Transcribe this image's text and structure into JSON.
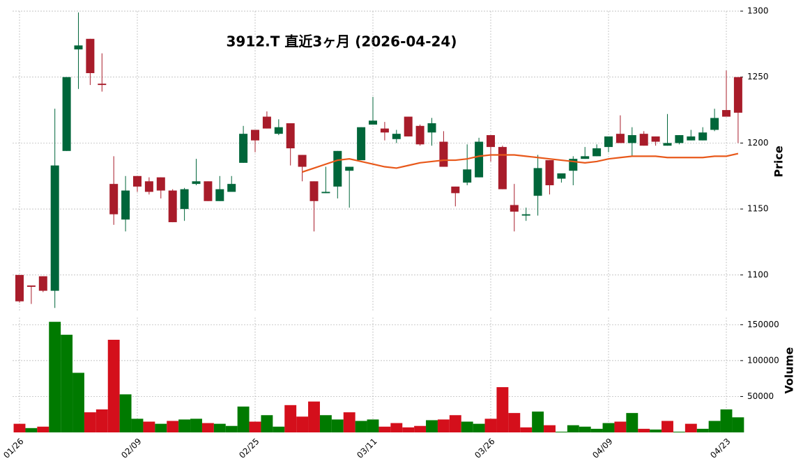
{
  "chart_data": [
    {
      "type": "candlestick",
      "title": "3912.T 直近3ヶ月 (2026-04-24)",
      "ylabel": "Price",
      "categories": [
        "01/26",
        null,
        null,
        null,
        null,
        null,
        null,
        null,
        null,
        null,
        "02/09",
        null,
        null,
        null,
        null,
        null,
        null,
        null,
        null,
        null,
        "02/25",
        null,
        null,
        null,
        null,
        null,
        null,
        null,
        null,
        null,
        "03/11",
        null,
        null,
        null,
        null,
        null,
        null,
        null,
        null,
        null,
        "03/26",
        null,
        null,
        null,
        null,
        null,
        null,
        null,
        null,
        null,
        "04/09",
        null,
        null,
        null,
        null,
        null,
        null,
        null,
        null,
        null,
        "04/23",
        null
      ],
      "open": [
        1100,
        1092,
        1099,
        1088,
        1194,
        1271,
        1279,
        1245,
        1169,
        1142,
        1175,
        1171,
        1174,
        1164,
        1150,
        1169,
        1171,
        1156,
        1163,
        1185,
        1210,
        1220,
        1207,
        1215,
        1191,
        1171,
        1162,
        1167,
        1179,
        1187,
        1214,
        1211,
        1203,
        1220,
        1213,
        1208,
        1201,
        1167,
        1170,
        1174,
        1206,
        1197,
        1153,
        1145,
        1160,
        1187,
        1173,
        1179,
        1188,
        1190,
        1197,
        1207,
        1200,
        1207,
        1205,
        1198,
        1200,
        1202,
        1202,
        1210,
        1225,
        1250
      ],
      "high": [
        1100,
        1092,
        1099,
        1226,
        1250,
        1299,
        1279,
        1268,
        1190,
        1175,
        1175,
        1174,
        1174,
        1165,
        1166,
        1188,
        1171,
        1175,
        1175,
        1213,
        1210,
        1224,
        1218,
        1215,
        1191,
        1171,
        1182,
        1194,
        1182,
        1212,
        1235,
        1216,
        1210,
        1220,
        1214,
        1219,
        1209,
        1167,
        1199,
        1204,
        1206,
        1198,
        1169,
        1151,
        1191,
        1187,
        1177,
        1190,
        1197,
        1199,
        1205,
        1221,
        1212,
        1209,
        1205,
        1222,
        1206,
        1210,
        1212,
        1226,
        1255,
        1250
      ],
      "low": [
        1079,
        1078,
        1087,
        1075,
        1194,
        1241,
        1244,
        1239,
        1138,
        1133,
        1163,
        1161,
        1158,
        1140,
        1141,
        1168,
        1156,
        1156,
        1163,
        1185,
        1193,
        1211,
        1206,
        1183,
        1171,
        1133,
        1162,
        1158,
        1151,
        1187,
        1214,
        1202,
        1200,
        1205,
        1198,
        1198,
        1182,
        1152,
        1168,
        1174,
        1186,
        1165,
        1133,
        1141,
        1145,
        1161,
        1170,
        1168,
        1188,
        1190,
        1193,
        1200,
        1190,
        1198,
        1198,
        1198,
        1199,
        1202,
        1202,
        1209,
        1220,
        1200
      ],
      "close": [
        1080,
        1091,
        1088,
        1183,
        1250,
        1274,
        1253,
        1244,
        1146,
        1164,
        1167,
        1163,
        1164,
        1140,
        1165,
        1171,
        1156,
        1165,
        1169,
        1207,
        1202,
        1211,
        1212,
        1196,
        1182,
        1156,
        1163,
        1194,
        1182,
        1212,
        1217,
        1208,
        1207,
        1205,
        1199,
        1215,
        1182,
        1162,
        1180,
        1201,
        1197,
        1165,
        1148,
        1146,
        1181,
        1168,
        1177,
        1188,
        1190,
        1196,
        1205,
        1200,
        1206,
        1198,
        1201,
        1200,
        1206,
        1205,
        1208,
        1219,
        1220,
        1223
      ],
      "up_color": "#00663a",
      "down_color": "#a81c2a",
      "line": {
        "color": "#e8581a",
        "values": [
          null,
          null,
          null,
          null,
          null,
          null,
          null,
          null,
          null,
          null,
          null,
          null,
          null,
          null,
          null,
          null,
          null,
          null,
          null,
          null,
          null,
          null,
          null,
          null,
          1178,
          1181,
          1184,
          1187,
          1188,
          1186,
          1184,
          1182,
          1181,
          1183,
          1185,
          1186,
          1187,
          1187,
          1188,
          1190,
          1191,
          1191,
          1191,
          1190,
          1189,
          1188,
          1187,
          1186,
          1185,
          1186,
          1188,
          1189,
          1190,
          1190,
          1190,
          1189,
          1189,
          1189,
          1189,
          1190,
          1190,
          1192
        ]
      },
      "ylim": [
        1073,
        1300
      ],
      "yticks": [
        1100,
        1150,
        1200,
        1250,
        1300
      ],
      "grid": true
    },
    {
      "type": "bar",
      "ylabel": "Volume",
      "values": [
        12000,
        6000,
        8000,
        154000,
        136000,
        83000,
        28000,
        32000,
        129000,
        53000,
        19000,
        15000,
        12000,
        16000,
        18000,
        19000,
        13000,
        12000,
        9000,
        36000,
        15000,
        24000,
        8000,
        38000,
        22000,
        43000,
        24000,
        18000,
        28000,
        16000,
        18000,
        8000,
        13000,
        7000,
        9000,
        17000,
        18000,
        24000,
        15000,
        12000,
        19000,
        63000,
        27000,
        7000,
        29000,
        10000,
        1000,
        10000,
        8000,
        5000,
        13000,
        15000,
        27000,
        5000,
        4000,
        16000,
        1000,
        12000,
        5000,
        16000,
        32000,
        21000
      ],
      "up_color": "#007a00",
      "down_color": "#d40f1b",
      "ylim": [
        0,
        160000
      ],
      "yticks": [
        50000,
        100000,
        150000
      ],
      "grid": true
    }
  ]
}
